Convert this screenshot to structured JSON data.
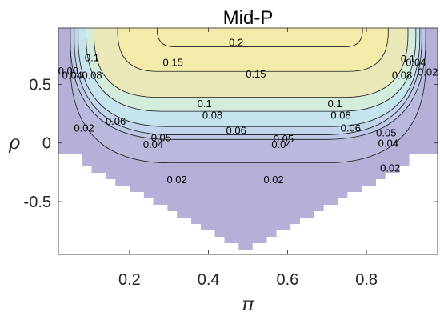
{
  "chart_data": {
    "type": "contour",
    "title": "Mid-P",
    "xlabel": "π",
    "ylabel": "ρ",
    "xlim": [
      0.02,
      0.98
    ],
    "ylim": [
      -0.95,
      0.98
    ],
    "xticks": [
      {
        "value": 0.2,
        "label": "0.2"
      },
      {
        "value": 0.4,
        "label": "0.4"
      },
      {
        "value": 0.6,
        "label": "0.6"
      },
      {
        "value": 0.8,
        "label": "0.8"
      }
    ],
    "yticks": [
      {
        "value": 0.5,
        "label": "0.5"
      },
      {
        "value": 0,
        "label": "0"
      },
      {
        "value": -0.5,
        "label": "-0.5"
      }
    ],
    "grid": false,
    "contour_levels": [
      0.02,
      0.04,
      0.05,
      0.06,
      0.08,
      0.1,
      0.15,
      0.2
    ],
    "fill_colors": [
      "#b4b0d8",
      "#b9b9de",
      "#bec8e6",
      "#c2d4ec",
      "#c6e4ee",
      "#d4ecdc",
      "#eae8b9",
      "#f3eba9"
    ],
    "contour_labels": [
      {
        "text": "0.2",
        "x": 0.47,
        "y": 0.86
      },
      {
        "text": "0.15",
        "x": 0.31,
        "y": 0.69
      },
      {
        "text": "0.15",
        "x": 0.52,
        "y": 0.59
      },
      {
        "text": "0.1",
        "x": 0.105,
        "y": 0.73
      },
      {
        "text": "0.1",
        "x": 0.39,
        "y": 0.34
      },
      {
        "text": "0.1",
        "x": 0.72,
        "y": 0.34
      },
      {
        "text": "0.1",
        "x": 0.905,
        "y": 0.72
      },
      {
        "text": "0.08",
        "x": 0.105,
        "y": 0.58
      },
      {
        "text": "0.08",
        "x": 0.41,
        "y": 0.24
      },
      {
        "text": "0.08",
        "x": 0.735,
        "y": 0.24
      },
      {
        "text": "0.08",
        "x": 0.89,
        "y": 0.58
      },
      {
        "text": "0.06",
        "x": 0.165,
        "y": 0.19
      },
      {
        "text": "0.06",
        "x": 0.47,
        "y": 0.11
      },
      {
        "text": "0.06",
        "x": 0.76,
        "y": 0.13
      },
      {
        "text": "0.06",
        "x": 0.045,
        "y": 0.62
      },
      {
        "text": "0.05",
        "x": 0.28,
        "y": 0.05
      },
      {
        "text": "0.05",
        "x": 0.59,
        "y": 0.04
      },
      {
        "text": "0.05",
        "x": 0.85,
        "y": 0.09
      },
      {
        "text": "0.04",
        "x": 0.26,
        "y": -0.01
      },
      {
        "text": "0.04",
        "x": 0.585,
        "y": -0.01
      },
      {
        "text": "0.04",
        "x": 0.855,
        "y": 0.0
      },
      {
        "text": "0.04",
        "x": 0.925,
        "y": 0.69
      },
      {
        "text": "0.04",
        "x": 0.055,
        "y": 0.58
      },
      {
        "text": "0.02",
        "x": 0.085,
        "y": 0.13
      },
      {
        "text": "0.02",
        "x": 0.32,
        "y": -0.31
      },
      {
        "text": "0.02",
        "x": 0.565,
        "y": -0.31
      },
      {
        "text": "0.02",
        "x": 0.86,
        "y": -0.21
      },
      {
        "text": "0.02",
        "x": 0.955,
        "y": 0.61
      }
    ]
  }
}
